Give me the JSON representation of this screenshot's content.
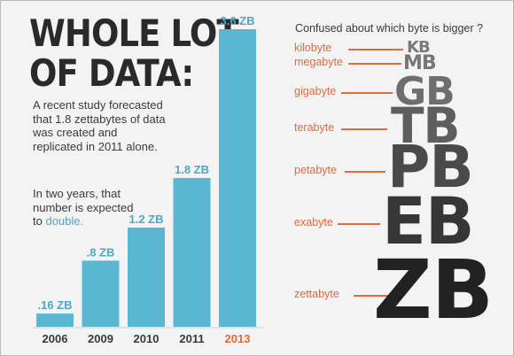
{
  "title_lines": [
    "WHOLE LOT",
    "OF DATA:"
  ],
  "paragraph1": "A recent study forecasted that 1.8 zettabytes of data was created and replicated in 2011 alone.",
  "paragraph2_prefix": "In two years, that number is expected to",
  "paragraph2_highlight": "double.",
  "right_heading": "Confused about which byte is bigger ?",
  "colors": {
    "bar": "#5ab6d1",
    "highlight": "#4aa9c6",
    "accent": "#e06a3c",
    "dark": "#2a2a2a"
  },
  "chart_data": {
    "type": "bar",
    "categories": [
      "2006",
      "2009",
      "2010",
      "2011",
      "2013"
    ],
    "values": [
      0.16,
      0.8,
      1.2,
      1.8,
      3.6
    ],
    "data_labels": [
      ".16 ZB",
      ".8 ZB",
      "1.2 ZB",
      "1.8 ZB",
      "3.6 ZB"
    ],
    "highlighted_category": "2013",
    "unit": "ZB",
    "ylim": [
      0,
      3.6
    ]
  },
  "byte_units": [
    {
      "name": "kilobyte",
      "abbr": "KB"
    },
    {
      "name": "megabyte",
      "abbr": "MB"
    },
    {
      "name": "gigabyte",
      "abbr": "GB"
    },
    {
      "name": "terabyte",
      "abbr": "TB"
    },
    {
      "name": "petabyte",
      "abbr": "PB"
    },
    {
      "name": "exabyte",
      "abbr": "EB"
    },
    {
      "name": "zettabyte",
      "abbr": "ZB"
    }
  ]
}
